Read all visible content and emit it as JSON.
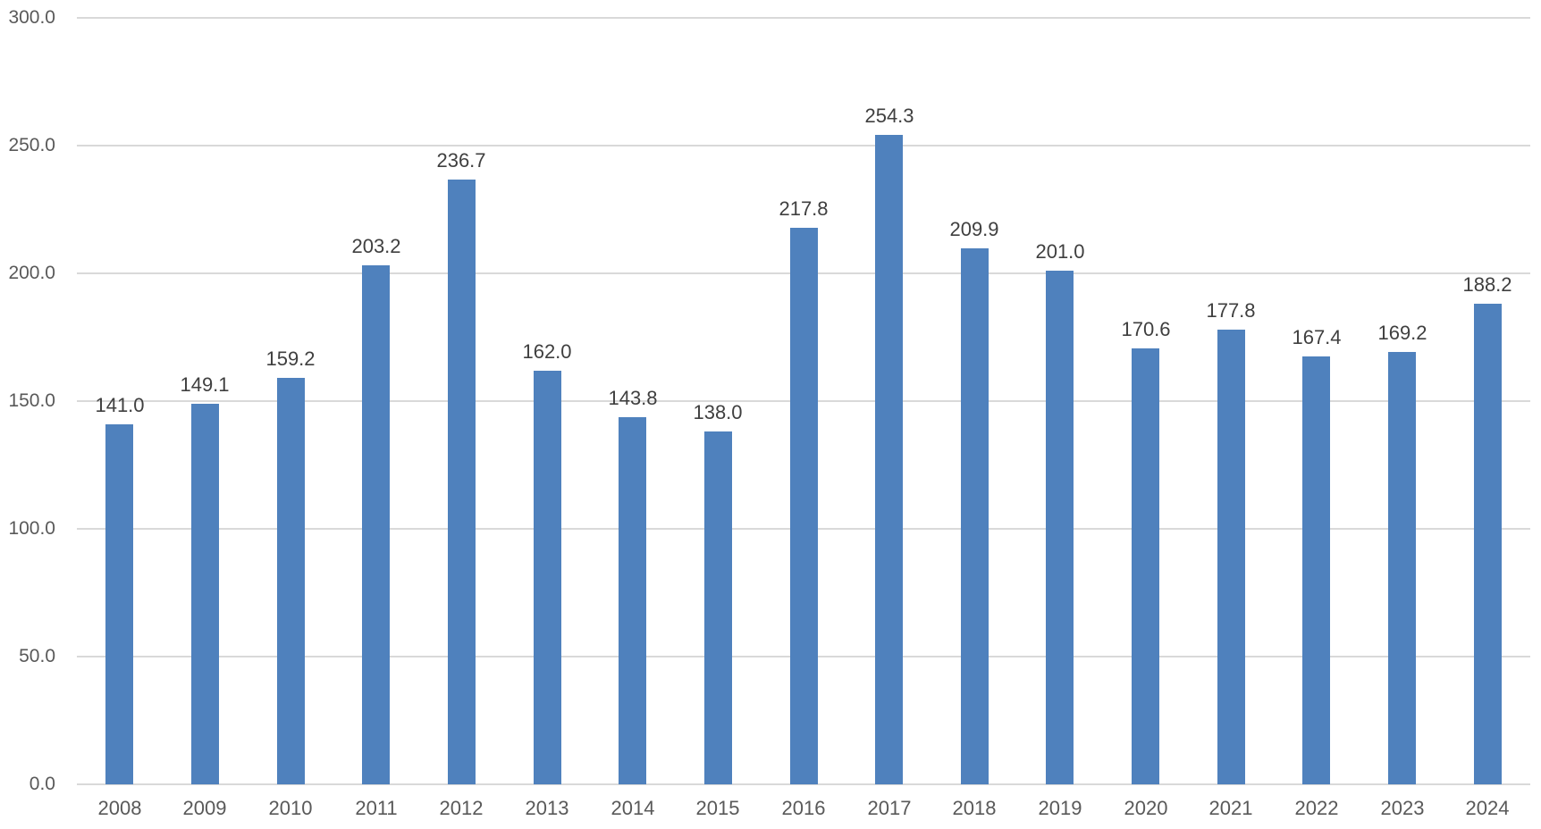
{
  "chart_data": {
    "type": "bar",
    "title": "",
    "xlabel": "",
    "ylabel": "",
    "categories": [
      "2008",
      "2009",
      "2010",
      "2011",
      "2012",
      "2013",
      "2014",
      "2015",
      "2016",
      "2017",
      "2018",
      "2019",
      "2020",
      "2021",
      "2022",
      "2023",
      "2024"
    ],
    "series": [
      {
        "name": "value",
        "values": [
          141.0,
          149.1,
          159.2,
          203.2,
          236.7,
          162.0,
          143.8,
          138.0,
          217.8,
          254.3,
          209.9,
          201.0,
          170.6,
          177.8,
          167.4,
          169.2,
          188.2
        ],
        "value_labels": [
          "141.0",
          "149.1",
          "159.2",
          "203.2",
          "236.7",
          "162.0",
          "143.8",
          "138.0",
          "217.8",
          "254.3",
          "209.9",
          "201.0",
          "170.6",
          "177.8",
          "167.4",
          "169.2",
          "188.2"
        ]
      }
    ],
    "ylim": [
      0,
      300
    ],
    "ytick_values": [
      0,
      50,
      100,
      150,
      200,
      250,
      300
    ],
    "ytick_labels": [
      "0.0",
      "50.0",
      "100.0",
      "150.0",
      "200.0",
      "250.0",
      "300.0"
    ],
    "grid": true,
    "legend_position": "none",
    "colors": {
      "bar": "#4f81bd",
      "gridline": "#d9d9d9",
      "axis_line": "#d9d9d9",
      "tick_label": "#595959",
      "data_label": "#3f3f3f",
      "background": "#ffffff"
    }
  }
}
